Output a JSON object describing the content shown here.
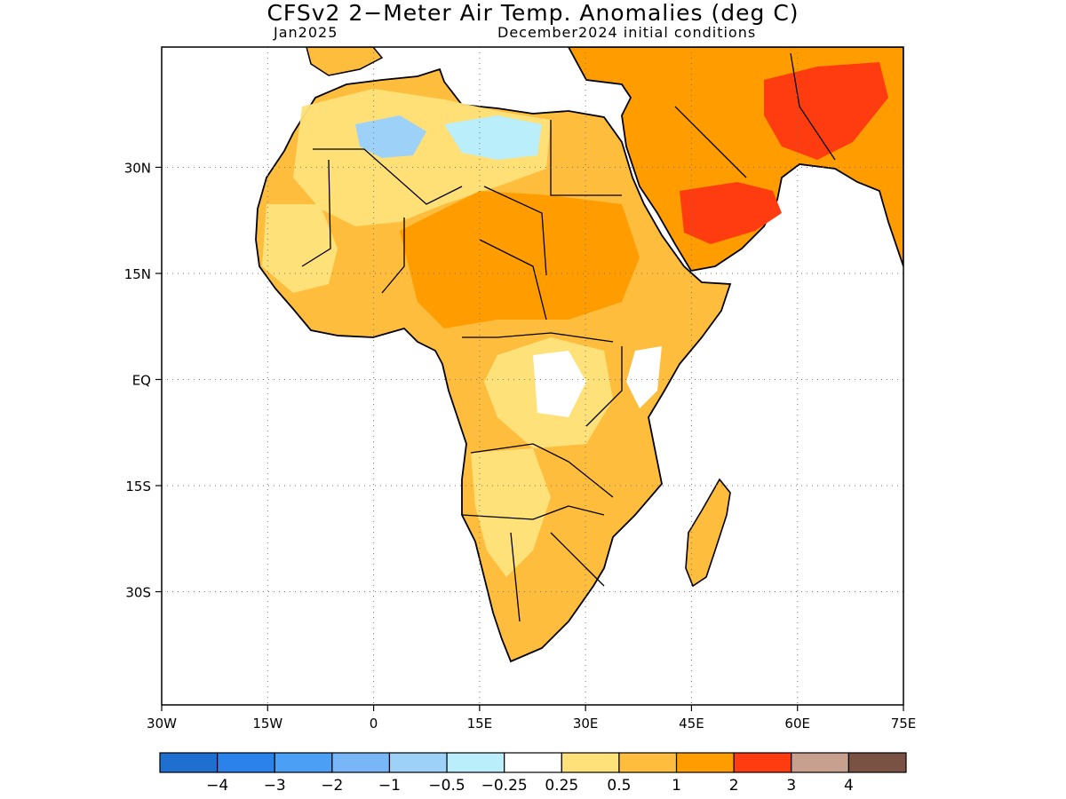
{
  "title": "CFSv2 2−Meter Air Temp. Anomalies (deg C)",
  "subtitle_left": "Jan2025",
  "subtitle_right": "December2024 initial conditions",
  "map": {
    "lon_range": [
      -30,
      75
    ],
    "lat_range": [
      -46,
      47
    ],
    "lon_ticks": [
      {
        "value": -30,
        "label": "30W"
      },
      {
        "value": -15,
        "label": "15W"
      },
      {
        "value": 0,
        "label": "0"
      },
      {
        "value": 15,
        "label": "15E"
      },
      {
        "value": 30,
        "label": "30E"
      },
      {
        "value": 45,
        "label": "45E"
      },
      {
        "value": 60,
        "label": "60E"
      },
      {
        "value": 75,
        "label": "75E"
      }
    ],
    "lat_ticks": [
      {
        "value": 30,
        "label": "30N"
      },
      {
        "value": 15,
        "label": "15N"
      },
      {
        "value": 0,
        "label": "EQ"
      },
      {
        "value": -15,
        "label": "15S"
      },
      {
        "value": -30,
        "label": "30S"
      }
    ],
    "grid": "dotted"
  },
  "colorbar": {
    "colors": [
      "#1e6fd0",
      "#2a82ea",
      "#4ba0f5",
      "#78b6f7",
      "#9ed1f8",
      "#b9eefa",
      "#ffffff",
      "#ffe17a",
      "#ffbd3d",
      "#ff9d00",
      "#ff3c10",
      "#c8a090",
      "#7a5244"
    ],
    "labels": [
      "−4",
      "−3",
      "−2",
      "−1",
      "−0.5",
      "−0.25",
      "0.25",
      "0.5",
      "1",
      "2",
      "3",
      "4"
    ]
  }
}
